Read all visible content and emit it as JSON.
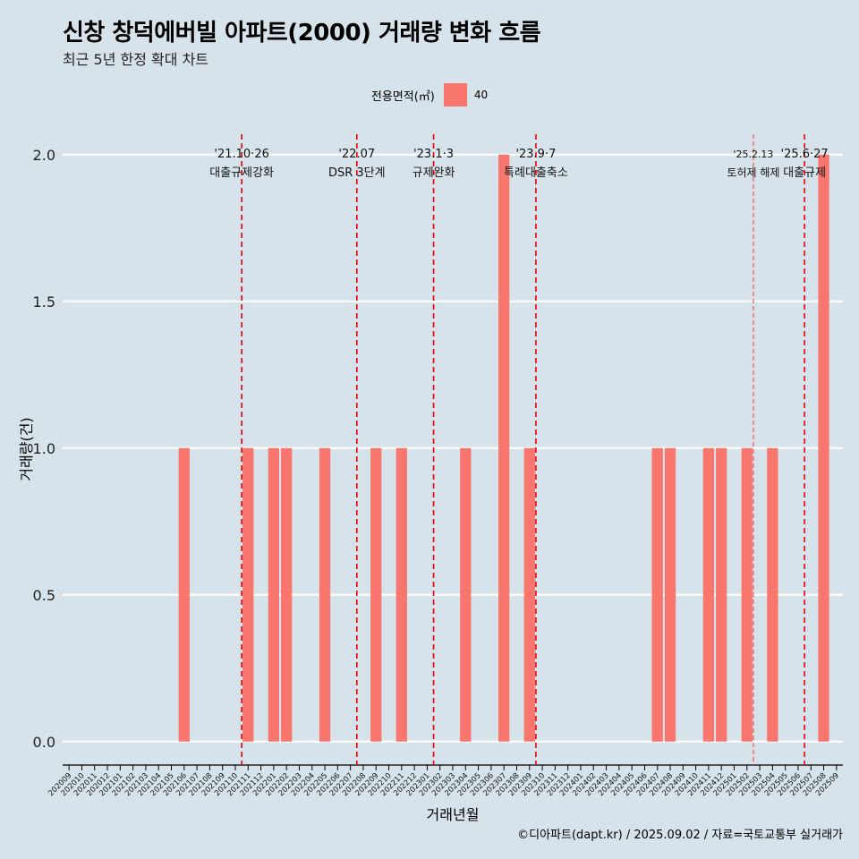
{
  "header": {
    "title": "신창 창덕에버빌 아파트(2000) 거래량 변화 흐름",
    "subtitle": "최근 5년 한정 확대 차트"
  },
  "legend": {
    "title": "전용면적(㎡)",
    "items": [
      {
        "label": "40",
        "color": "#f8766d"
      }
    ]
  },
  "caption": "©디아파트(dapt.kr) / 2025.09.02 / 자료=국토교통부 실거래가",
  "chart_data": {
    "type": "bar",
    "xlabel": "거래년월",
    "ylabel": "거래량(건)",
    "ylim": [
      -0.08,
      2.1
    ],
    "yticks": [
      "0.0",
      "0.5",
      "1.0",
      "1.5",
      "2.0"
    ],
    "grid": true,
    "legend_position": "top",
    "bar_color": "#f8766d",
    "categories": [
      "202009",
      "202010",
      "202011",
      "202012",
      "202101",
      "202102",
      "202103",
      "202104",
      "202105",
      "202106",
      "202107",
      "202108",
      "202109",
      "202110",
      "202111",
      "202112",
      "202201",
      "202202",
      "202203",
      "202204",
      "202205",
      "202206",
      "202207",
      "202208",
      "202209",
      "202210",
      "202211",
      "202212",
      "202301",
      "202302",
      "202303",
      "202304",
      "202305",
      "202306",
      "202307",
      "202308",
      "202309",
      "202310",
      "202311",
      "202312",
      "202401",
      "202402",
      "202403",
      "202404",
      "202405",
      "202406",
      "202407",
      "202408",
      "202409",
      "202410",
      "202411",
      "202412",
      "202501",
      "202502",
      "202503",
      "202504",
      "202505",
      "202506",
      "202507",
      "202508",
      "202509"
    ],
    "series": [
      {
        "name": "40",
        "values": [
          0,
          0,
          0,
          0,
          0,
          0,
          0,
          0,
          0,
          1,
          0,
          0,
          0,
          0,
          1,
          0,
          1,
          1,
          0,
          0,
          1,
          0,
          0,
          0,
          1,
          0,
          1,
          0,
          0,
          0,
          0,
          1,
          0,
          0,
          2,
          0,
          1,
          0,
          0,
          0,
          0,
          0,
          0,
          0,
          0,
          0,
          1,
          1,
          0,
          0,
          1,
          1,
          0,
          1,
          0,
          1,
          0,
          0,
          0,
          2,
          0
        ]
      }
    ],
    "annotations": [
      {
        "date_label": "'21.10·26",
        "text": "대출규제강화",
        "at_category_index": 13.5,
        "style": "thick"
      },
      {
        "date_label": "'22.07",
        "text": "DSR 3단계",
        "at_category_index": 22.5,
        "style": "thick"
      },
      {
        "date_label": "'23.1·3",
        "text": "규제완화",
        "at_category_index": 28.5,
        "style": "thick"
      },
      {
        "date_label": "'23.9·7",
        "text": "특례대출축소",
        "at_category_index": 36.5,
        "style": "thick"
      },
      {
        "date_label": "'25.2.13",
        "text": "토허제 해제",
        "at_category_index": 53.5,
        "style": "thin"
      },
      {
        "date_label": "'25.6·27",
        "text": "대출규제",
        "at_category_index": 57.5,
        "style": "thick"
      }
    ]
  }
}
